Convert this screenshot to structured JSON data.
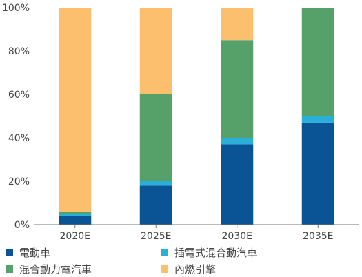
{
  "chart_data": {
    "type": "bar",
    "stacked": true,
    "categories": [
      "2020E",
      "2025E",
      "2030E",
      "2035E"
    ],
    "series": [
      {
        "name": "電動車",
        "color": "#0a5394",
        "values": [
          4,
          18,
          37,
          47
        ]
      },
      {
        "name": "插電式混合動汽車",
        "color": "#2ab0d8",
        "values": [
          1,
          2,
          3,
          3
        ]
      },
      {
        "name": "混合動力電汽車",
        "color": "#56a06a",
        "values": [
          1,
          40,
          45,
          50
        ]
      },
      {
        "name": "內燃引擎",
        "color": "#fbbf6e",
        "values": [
          94,
          40,
          15,
          0
        ]
      }
    ],
    "y_ticks": [
      "0%",
      "20%",
      "40%",
      "60%",
      "80%",
      "100%"
    ],
    "ylim": [
      0,
      100
    ],
    "grid": false,
    "legend_position": "bottom"
  }
}
